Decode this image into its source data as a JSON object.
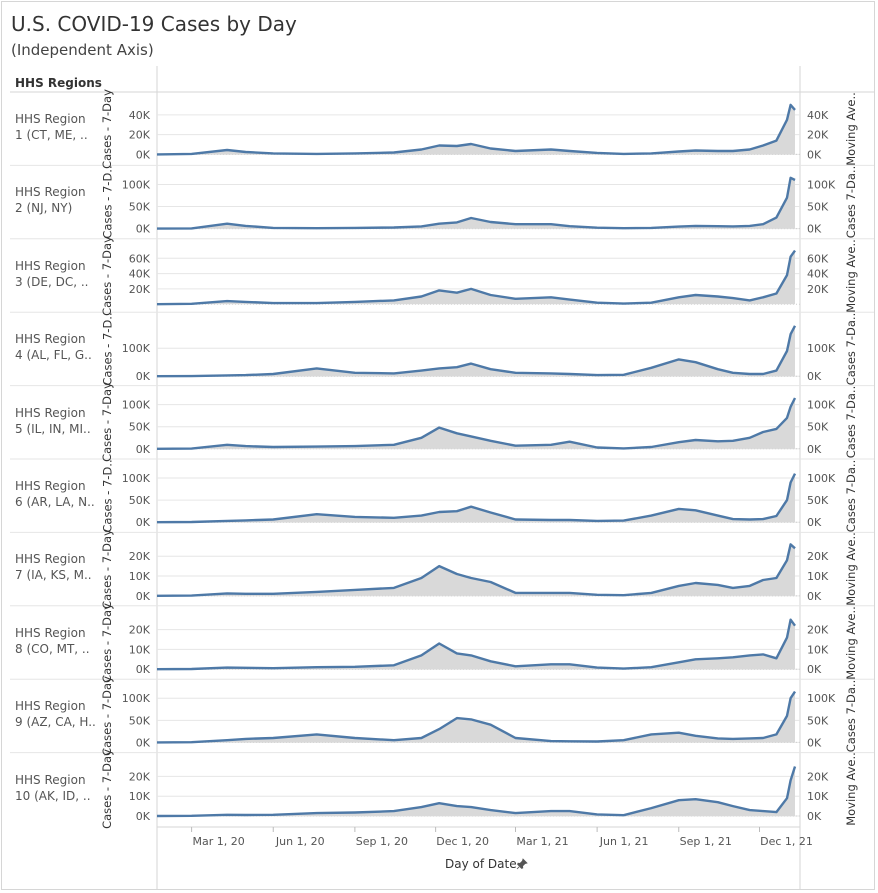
{
  "title": "U.S. COVID-19 Cases by Day",
  "subtitle": "(Independent Axis)",
  "row_header": "HHS Regions",
  "x_axis_title": "Day of Date",
  "icons": {
    "x_axis_pin": "pin-icon"
  },
  "colors": {
    "line": "#4e79a7",
    "area": "#d9d9d9",
    "grid": "#e6e6e6"
  },
  "chart_data": {
    "type": "area",
    "x_ticks": [
      "Mar 1, 20",
      "Jun 1, 20",
      "Sep 1, 20",
      "Dec 1, 20",
      "Mar 1, 21",
      "Jun 1, 21",
      "Sep 1, 21",
      "Dec 1, 21"
    ],
    "x_range": [
      "2020-01-22",
      "2022-01-10"
    ],
    "x_points": [
      "2020-01-22",
      "2020-03-01",
      "2020-04-10",
      "2020-05-01",
      "2020-06-01",
      "2020-07-20",
      "2020-09-01",
      "2020-10-15",
      "2020-11-15",
      "2020-12-05",
      "2020-12-25",
      "2021-01-10",
      "2021-02-01",
      "2021-03-01",
      "2021-04-10",
      "2021-05-01",
      "2021-06-01",
      "2021-07-01",
      "2021-08-01",
      "2021-09-01",
      "2021-09-20",
      "2021-10-15",
      "2021-11-01",
      "2021-11-20",
      "2021-12-05",
      "2021-12-20",
      "2022-01-01",
      "2022-01-05",
      "2022-01-10"
    ],
    "series": [
      {
        "label_lines": [
          "HHS Region",
          "1 (CT, ME, .."
        ],
        "left_title": "Cases - 7-Day",
        "right_title": "Moving Ave..",
        "ticks": [
          "40K",
          "20K",
          "0K"
        ],
        "tick_values": [
          40000,
          20000,
          0
        ],
        "ylim": [
          -3000,
          55000
        ],
        "values": [
          0,
          500,
          4500,
          2500,
          1000,
          500,
          1000,
          2000,
          5000,
          9000,
          8500,
          10500,
          6000,
          3500,
          5000,
          3500,
          1500,
          500,
          1000,
          3000,
          4000,
          3500,
          3500,
          5000,
          9000,
          14000,
          35000,
          50000,
          45000
        ]
      },
      {
        "label_lines": [
          "HHS Region",
          "2 (NJ, NY)"
        ],
        "left_title": "Cases - 7-D..",
        "right_title": "Cases 7-Da..",
        "ticks": [
          "100K",
          "50K",
          "0K"
        ],
        "tick_values": [
          100000,
          50000,
          0
        ],
        "ylim": [
          -5000,
          125000
        ],
        "values": [
          0,
          500,
          11000,
          6000,
          1500,
          1000,
          1500,
          2500,
          5000,
          11000,
          14000,
          24000,
          15000,
          10000,
          10000,
          5500,
          2000,
          1000,
          1500,
          4500,
          6000,
          5500,
          5000,
          6000,
          10000,
          25000,
          70000,
          115000,
          110000
        ]
      },
      {
        "label_lines": [
          "HHS Region",
          "3 (DE, DC, .."
        ],
        "left_title": "Cases - 7-Day",
        "right_title": "Moving Ave..",
        "ticks": [
          "60K",
          "40K",
          "20K"
        ],
        "tick_values": [
          60000,
          40000,
          20000
        ],
        "ylim": [
          0,
          75000
        ],
        "values": [
          0,
          500,
          4000,
          3000,
          1500,
          1500,
          3000,
          5000,
          10000,
          18000,
          15000,
          20000,
          12000,
          7000,
          9000,
          6000,
          2000,
          800,
          2000,
          9000,
          12000,
          10000,
          8000,
          5000,
          9000,
          14000,
          38000,
          62000,
          70000
        ]
      },
      {
        "label_lines": [
          "HHS Region",
          "4 (AL, FL, G.."
        ],
        "left_title": "Cases - 7-D..",
        "right_title": "Cases 7-Da..",
        "ticks": [
          "100K",
          "0K"
        ],
        "tick_values": [
          100000,
          0
        ],
        "ylim": [
          -5000,
          200000
        ],
        "values": [
          0,
          500,
          3000,
          4000,
          8000,
          28000,
          12000,
          10000,
          20000,
          28000,
          32000,
          45000,
          25000,
          12000,
          10000,
          8000,
          4000,
          5000,
          30000,
          60000,
          50000,
          25000,
          12000,
          8000,
          8000,
          20000,
          90000,
          150000,
          180000
        ]
      },
      {
        "label_lines": [
          "HHS Region",
          "5 (IL, IN, MI.."
        ],
        "left_title": "Cases - 7-Day",
        "right_title": "Cases 7-Da..",
        "ticks": [
          "100K",
          "50K",
          "0K"
        ],
        "tick_values": [
          100000,
          50000,
          0
        ],
        "ylim": [
          -5000,
          125000
        ],
        "values": [
          0,
          500,
          9000,
          6000,
          4000,
          5000,
          6000,
          9000,
          25000,
          48000,
          35000,
          28000,
          18000,
          7000,
          9000,
          16000,
          3000,
          1000,
          4000,
          15000,
          20000,
          17000,
          18000,
          25000,
          38000,
          45000,
          70000,
          95000,
          115000
        ]
      },
      {
        "label_lines": [
          "HHS Region",
          "6 (AR, LA, N.."
        ],
        "left_title": "Cases - 7-D..",
        "right_title": "Cases 7-Da..",
        "ticks": [
          "100K",
          "50K",
          "0K"
        ],
        "tick_values": [
          100000,
          50000,
          0
        ],
        "ylim": [
          -5000,
          125000
        ],
        "values": [
          0,
          500,
          3000,
          4000,
          6000,
          18000,
          12000,
          10000,
          15000,
          23000,
          25000,
          35000,
          22000,
          6000,
          5000,
          5000,
          3000,
          3500,
          15000,
          30000,
          27000,
          15000,
          7000,
          6000,
          7000,
          14000,
          50000,
          90000,
          110000
        ]
      },
      {
        "label_lines": [
          "HHS Region",
          "7 (IA, KS, M.."
        ],
        "left_title": "Cases - 7-Day",
        "right_title": "Moving Ave..",
        "ticks": [
          "20K",
          "10K",
          "0K"
        ],
        "tick_values": [
          20000,
          10000,
          0
        ],
        "ylim": [
          -1000,
          28000
        ],
        "values": [
          0,
          100,
          1200,
          1000,
          1000,
          2000,
          3000,
          4000,
          9000,
          15000,
          11000,
          9000,
          7000,
          1500,
          1500,
          1500,
          500,
          300,
          1500,
          5000,
          6500,
          5500,
          4000,
          5000,
          8000,
          9000,
          18000,
          26000,
          24000
        ]
      },
      {
        "label_lines": [
          "HHS Region",
          "8 (CO, MT, .."
        ],
        "left_title": "Cases - 7-Day",
        "right_title": "Moving Ave..",
        "ticks": [
          "20K",
          "10K",
          "0K"
        ],
        "tick_values": [
          20000,
          10000,
          0
        ],
        "ylim": [
          -1000,
          28000
        ],
        "values": [
          0,
          100,
          800,
          700,
          500,
          1000,
          1200,
          2000,
          7000,
          13000,
          8000,
          7000,
          4000,
          1500,
          2500,
          2500,
          800,
          300,
          1000,
          3500,
          5000,
          5500,
          6000,
          7000,
          7500,
          5500,
          16000,
          25000,
          22000
        ]
      },
      {
        "label_lines": [
          "HHS Region",
          "9 (AZ, CA, H.."
        ],
        "left_title": "Cases - 7-Day",
        "right_title": "Cases 7-Da..",
        "ticks": [
          "100K",
          "50K",
          "0K"
        ],
        "tick_values": [
          100000,
          50000,
          0
        ],
        "ylim": [
          -5000,
          125000
        ],
        "values": [
          0,
          500,
          5000,
          8000,
          10000,
          18000,
          10000,
          5000,
          10000,
          30000,
          55000,
          52000,
          40000,
          10000,
          3000,
          2500,
          2000,
          5000,
          18000,
          22000,
          15000,
          9000,
          8000,
          9000,
          10000,
          18000,
          60000,
          100000,
          115000
        ]
      },
      {
        "label_lines": [
          "HHS Region",
          "10 (AK, ID, .."
        ],
        "left_title": "Cases - 7-Day",
        "right_title": "Moving Ave..",
        "ticks": [
          "20K",
          "10K",
          "0K"
        ],
        "tick_values": [
          20000,
          10000,
          0
        ],
        "ylim": [
          -1000,
          28000
        ],
        "values": [
          0,
          100,
          600,
          500,
          600,
          1500,
          1800,
          2500,
          4500,
          6500,
          5000,
          4500,
          3000,
          1500,
          2500,
          2500,
          800,
          400,
          4000,
          8000,
          8500,
          7000,
          5000,
          3000,
          2500,
          2000,
          9000,
          18000,
          25000
        ]
      }
    ]
  }
}
